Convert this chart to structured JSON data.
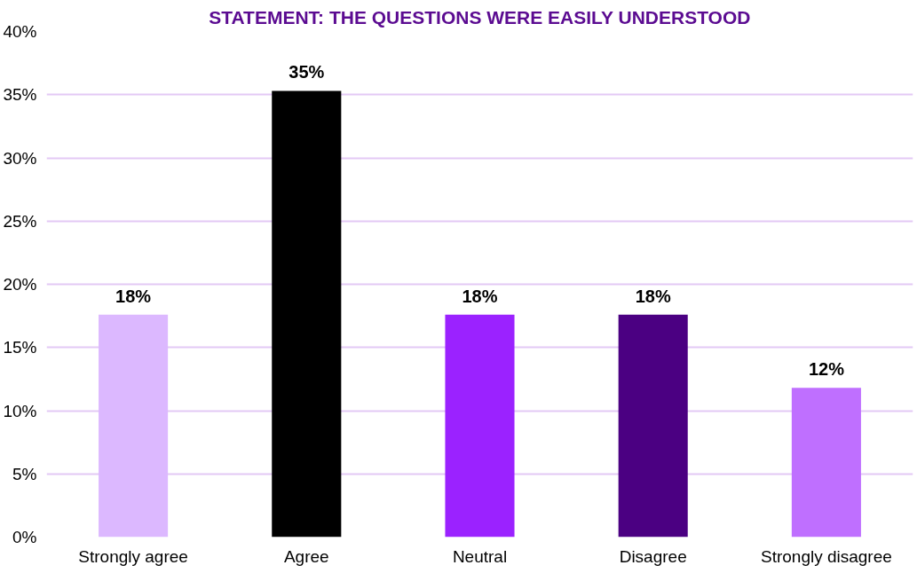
{
  "chart_data": {
    "type": "bar",
    "title": "STATEMENT: THE QUESTIONS WERE EASILY UNDERSTOOD",
    "categories": [
      "Strongly agree",
      "Agree",
      "Neutral",
      "Disagree",
      "Strongly disagree"
    ],
    "values": [
      17.6,
      35.3,
      17.6,
      17.6,
      11.8
    ],
    "colors": [
      "#dcb8ff",
      "#000000",
      "#9b22ff",
      "#4b0082",
      "#bf6fff"
    ],
    "value_labels": [
      "18%",
      "35%",
      "18%",
      "18%",
      "12%"
    ],
    "ylim": [
      0,
      40
    ],
    "yticks": [
      {
        "value": 0,
        "label": "0%"
      },
      {
        "value": 5,
        "label": "5%"
      },
      {
        "value": 10,
        "label": "10%"
      },
      {
        "value": 15,
        "label": "15%"
      },
      {
        "value": 20,
        "label": "20%"
      },
      {
        "value": 25,
        "label": "25%"
      },
      {
        "value": 30,
        "label": "30%"
      },
      {
        "value": 35,
        "label": "35%"
      },
      {
        "value": 40,
        "label": "40%"
      }
    ],
    "grid": "y"
  }
}
